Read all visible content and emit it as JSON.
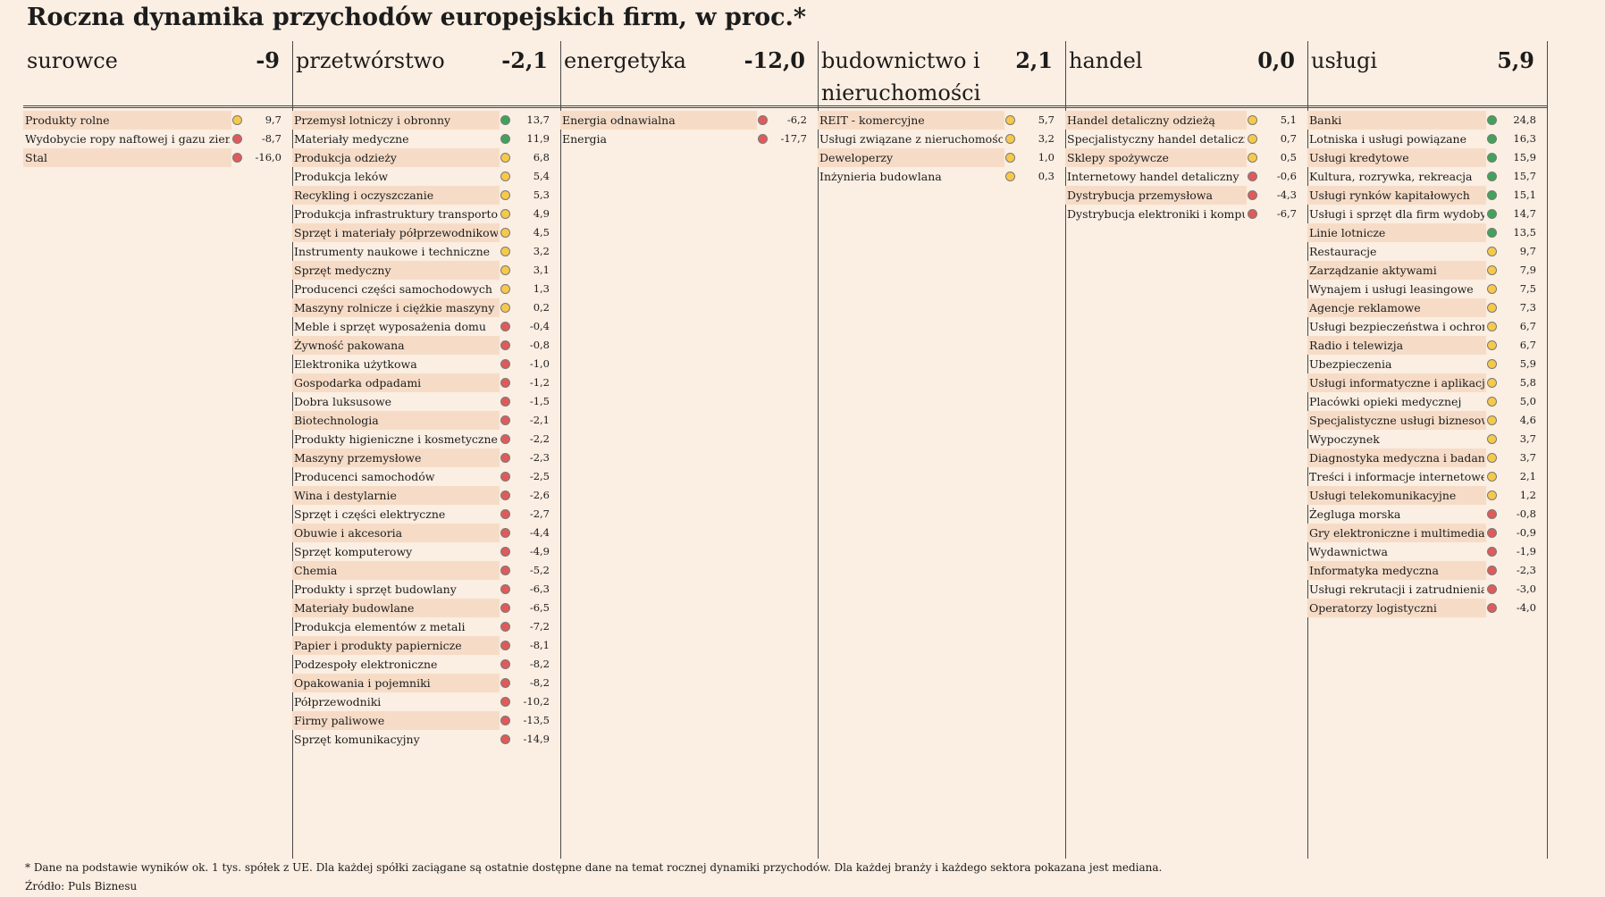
{
  "title": "Roczna dynamika przychodów europejskich firm, w proc.*",
  "footnote": "* Dane na podstawie wyników ok. 1 tys. spółek z UE. Dla każdej spółki zaciągane są ostatnie dostępne dane na temat rocznej dynamiki przychodów. Dla każdej branży i każdego sektora pokazana jest mediana.",
  "source": "Źródło: Puls Biznesu",
  "colors": {
    "green": "#3fa35a",
    "yellow": "#f7c948",
    "red": "#df5a5a",
    "background": "#fbeee2",
    "row_shade": "#f6dcc7"
  },
  "chart_data": {
    "type": "table",
    "sectors": [
      {
        "name": "surowce",
        "median": "-9",
        "rows": [
          {
            "label": "Produkty rolne",
            "status": "yellow",
            "value": "9,7"
          },
          {
            "label": "Wydobycie ropy naftowej i gazu ziemnego",
            "status": "red",
            "value": "-8,7"
          },
          {
            "label": "Stal",
            "status": "red",
            "value": "-16,0"
          }
        ]
      },
      {
        "name": "przetwórstwo",
        "median": "-2,1",
        "rows": [
          {
            "label": "Przemysł lotniczy i obronny",
            "status": "green",
            "value": "13,7"
          },
          {
            "label": "Materiały medyczne",
            "status": "green",
            "value": "11,9"
          },
          {
            "label": "Produkcja odzieży",
            "status": "yellow",
            "value": "6,8"
          },
          {
            "label": "Produkcja leków",
            "status": "yellow",
            "value": "5,4"
          },
          {
            "label": "Recykling i oczyszczanie",
            "status": "yellow",
            "value": "5,3"
          },
          {
            "label": "Produkcja infrastruktury transportowej",
            "status": "yellow",
            "value": "4,9"
          },
          {
            "label": "Sprzęt i materiały półprzewodnikowe",
            "status": "yellow",
            "value": "4,5"
          },
          {
            "label": "Instrumenty naukowe i techniczne",
            "status": "yellow",
            "value": "3,2"
          },
          {
            "label": "Sprzęt medyczny",
            "status": "yellow",
            "value": "3,1"
          },
          {
            "label": "Producenci części samochodowych",
            "status": "yellow",
            "value": "1,3"
          },
          {
            "label": "Maszyny rolnicze i ciężkie maszyny budowlane",
            "status": "yellow",
            "value": "0,2"
          },
          {
            "label": "Meble i sprzęt wyposażenia domu",
            "status": "red",
            "value": "-0,4"
          },
          {
            "label": "Żywność pakowana",
            "status": "red",
            "value": "-0,8"
          },
          {
            "label": "Elektronika użytkowa",
            "status": "red",
            "value": "-1,0"
          },
          {
            "label": "Gospodarka odpadami",
            "status": "red",
            "value": "-1,2"
          },
          {
            "label": "Dobra luksusowe",
            "status": "red",
            "value": "-1,5"
          },
          {
            "label": "Biotechnologia",
            "status": "red",
            "value": "-2,1"
          },
          {
            "label": "Produkty higieniczne i kosmetyczne",
            "status": "red",
            "value": "-2,2"
          },
          {
            "label": "Maszyny przemysłowe",
            "status": "red",
            "value": "-2,3"
          },
          {
            "label": "Producenci samochodów",
            "status": "red",
            "value": "-2,5"
          },
          {
            "label": "Wina i destylarnie",
            "status": "red",
            "value": "-2,6"
          },
          {
            "label": "Sprzęt i części elektryczne",
            "status": "red",
            "value": "-2,7"
          },
          {
            "label": "Obuwie i akcesoria",
            "status": "red",
            "value": "-4,4"
          },
          {
            "label": "Sprzęt komputerowy",
            "status": "red",
            "value": "-4,9"
          },
          {
            "label": "Chemia",
            "status": "red",
            "value": "-5,2"
          },
          {
            "label": "Produkty i sprzęt budowlany",
            "status": "red",
            "value": "-6,3"
          },
          {
            "label": "Materiały budowlane",
            "status": "red",
            "value": "-6,5"
          },
          {
            "label": "Produkcja elementów z metali",
            "status": "red",
            "value": "-7,2"
          },
          {
            "label": "Papier i produkty papiernicze",
            "status": "red",
            "value": "-8,1"
          },
          {
            "label": "Podzespoły elektroniczne",
            "status": "red",
            "value": "-8,2"
          },
          {
            "label": "Opakowania i pojemniki",
            "status": "red",
            "value": "-8,2"
          },
          {
            "label": "Półprzewodniki",
            "status": "red",
            "value": "-10,2"
          },
          {
            "label": "Firmy paliwowe",
            "status": "red",
            "value": "-13,5"
          },
          {
            "label": "Sprzęt komunikacyjny",
            "status": "red",
            "value": "-14,9"
          }
        ]
      },
      {
        "name": "energetyka",
        "median": "-12,0",
        "rows": [
          {
            "label": "Energia odnawialna",
            "status": "red",
            "value": "-6,2"
          },
          {
            "label": "Energia",
            "status": "red",
            "value": "-17,7"
          }
        ]
      },
      {
        "name": "budownictwo i nieruchomości",
        "median": "2,1",
        "rows": [
          {
            "label": "REIT - komercyjne",
            "status": "yellow",
            "value": "5,7"
          },
          {
            "label": "Usługi związane z nieruchomościami",
            "status": "yellow",
            "value": "3,2"
          },
          {
            "label": "Deweloperzy",
            "status": "yellow",
            "value": "1,0"
          },
          {
            "label": "Inżynieria budowlana",
            "status": "yellow",
            "value": "0,3"
          }
        ]
      },
      {
        "name": "handel",
        "median": "0,0",
        "rows": [
          {
            "label": "Handel detaliczny odzieżą",
            "status": "yellow",
            "value": "5,1"
          },
          {
            "label": "Specjalistyczny handel detaliczny",
            "status": "yellow",
            "value": "0,7"
          },
          {
            "label": "Sklepy spożywcze",
            "status": "yellow",
            "value": "0,5"
          },
          {
            "label": "Internetowy handel detaliczny",
            "status": "red",
            "value": "-0,6"
          },
          {
            "label": "Dystrybucja przemysłowa",
            "status": "red",
            "value": "-4,3"
          },
          {
            "label": "Dystrybucja elektroniki i komputerów",
            "status": "red",
            "value": "-6,7"
          }
        ]
      },
      {
        "name": "usługi",
        "median": "5,9",
        "rows": [
          {
            "label": "Banki",
            "status": "green",
            "value": "24,8"
          },
          {
            "label": "Lotniska i usługi powiązane",
            "status": "green",
            "value": "16,3"
          },
          {
            "label": "Usługi kredytowe",
            "status": "green",
            "value": "15,9"
          },
          {
            "label": "Kultura, rozrywka, rekreacja",
            "status": "green",
            "value": "15,7"
          },
          {
            "label": "Usługi rynków kapitałowych",
            "status": "green",
            "value": "15,1"
          },
          {
            "label": "Usługi i sprzęt dla firm wydobywczych",
            "status": "green",
            "value": "14,7"
          },
          {
            "label": "Linie lotnicze",
            "status": "green",
            "value": "13,5"
          },
          {
            "label": "Restauracje",
            "status": "yellow",
            "value": "9,7"
          },
          {
            "label": "Zarządzanie aktywami",
            "status": "yellow",
            "value": "7,9"
          },
          {
            "label": "Wynajem i usługi leasingowe",
            "status": "yellow",
            "value": "7,5"
          },
          {
            "label": "Agencje reklamowe",
            "status": "yellow",
            "value": "7,3"
          },
          {
            "label": "Usługi bezpieczeństwa i ochrony",
            "status": "yellow",
            "value": "6,7"
          },
          {
            "label": "Radio i telewizja",
            "status": "yellow",
            "value": "6,7"
          },
          {
            "label": "Ubezpieczenia",
            "status": "yellow",
            "value": "5,9"
          },
          {
            "label": "Usługi informatyczne i aplikacje",
            "status": "yellow",
            "value": "5,8"
          },
          {
            "label": "Placówki opieki medycznej",
            "status": "yellow",
            "value": "5,0"
          },
          {
            "label": "Specjalistyczne usługi biznesowe",
            "status": "yellow",
            "value": "4,6"
          },
          {
            "label": "Wypoczynek",
            "status": "yellow",
            "value": "3,7"
          },
          {
            "label": "Diagnostyka medyczna i badania",
            "status": "yellow",
            "value": "3,7"
          },
          {
            "label": "Treści i informacje internetowe",
            "status": "yellow",
            "value": "2,1"
          },
          {
            "label": "Usługi telekomunikacyjne",
            "status": "yellow",
            "value": "1,2"
          },
          {
            "label": "Żegluga morska",
            "status": "red",
            "value": "-0,8"
          },
          {
            "label": "Gry elektroniczne i multimedia",
            "status": "red",
            "value": "-0,9"
          },
          {
            "label": "Wydawnictwa",
            "status": "red",
            "value": "-1,9"
          },
          {
            "label": "Informatyka medyczna",
            "status": "red",
            "value": "-2,3"
          },
          {
            "label": "Usługi rekrutacji i zatrudnienia",
            "status": "red",
            "value": "-3,0"
          },
          {
            "label": "Operatorzy logistyczni",
            "status": "red",
            "value": "-4,0"
          }
        ]
      }
    ]
  }
}
